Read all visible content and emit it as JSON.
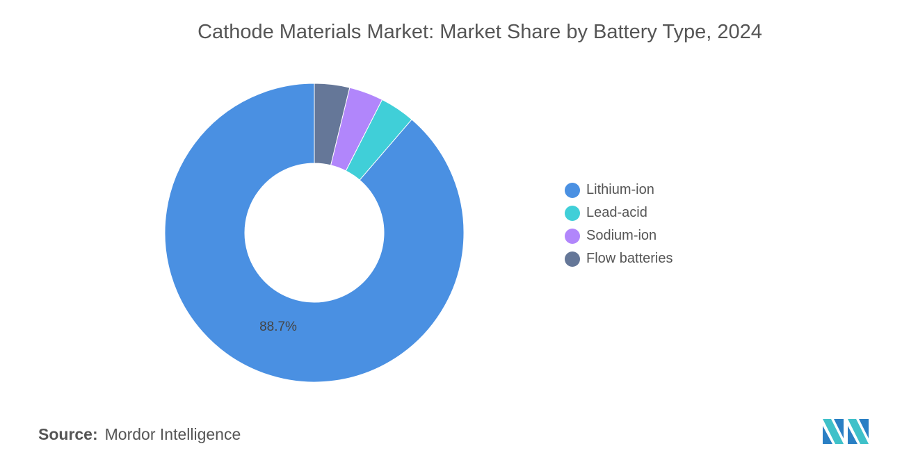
{
  "title": "Cathode Materials Market: Market Share by Battery Type, 2024",
  "chart_data": {
    "type": "donut",
    "title": "Cathode Materials Market: Market Share by Battery Type, 2024",
    "start": "top",
    "direction": "clockwise",
    "slices": [
      {
        "name": "Flow batteries",
        "value": 3.8,
        "color": "#657798"
      },
      {
        "name": "Sodium-ion",
        "value": 3.7,
        "color": "#b186fb"
      },
      {
        "name": "Lead-acid",
        "value": 3.8,
        "color": "#40cfd8"
      },
      {
        "name": "Lithium-ion",
        "value": 88.7,
        "color": "#4a90e2",
        "label": "88.7%"
      }
    ],
    "legend": {
      "placement": "right",
      "entries": [
        {
          "name": "Lithium-ion",
          "color": "#4a90e2"
        },
        {
          "name": "Lead-acid",
          "color": "#40cfd8"
        },
        {
          "name": "Sodium-ion",
          "color": "#b186fb"
        },
        {
          "name": "Flow batteries",
          "color": "#657798"
        }
      ]
    }
  },
  "source": {
    "label": "Source:",
    "value": "Mordor Intelligence"
  },
  "logo": {
    "text": "MI",
    "colors": [
      "#2a7fc4",
      "#3fc1c9"
    ]
  }
}
